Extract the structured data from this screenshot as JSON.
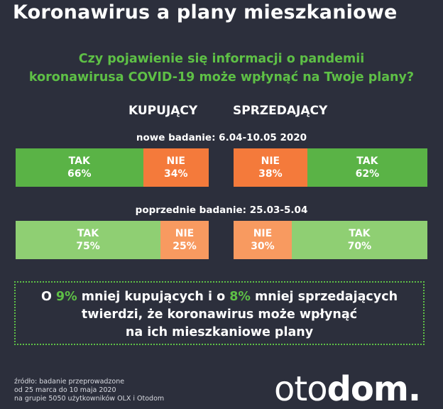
{
  "title": "Koronawirus a plany mieszkaniowe",
  "question_line1": "Czy pojawienie się informacji o pandemii",
  "question_line2": "koronawirusa COVID-19 może wpłynąć na Twoje plany?",
  "columns": {
    "buyers": "KUPUJĄCY",
    "sellers": "SPRZEDAJĄCY"
  },
  "colors": {
    "tak_new": "#5ab346",
    "nie_new": "#f47a3b",
    "tak_old": "#8fcf73",
    "nie_old": "#f89a60",
    "accent_green": "#5ec046",
    "background": "#2c2f3c"
  },
  "chart_data": {
    "type": "bar",
    "categories": [
      "TAK",
      "NIE"
    ],
    "surveys": [
      {
        "label": "nowe badanie: 6.04-10.05 2020",
        "buyers": {
          "TAK": 66,
          "NIE": 34
        },
        "sellers": {
          "TAK": 62,
          "NIE": 38
        }
      },
      {
        "label": "poprzednie badanie: 25.03-5.04",
        "buyers": {
          "TAK": 75,
          "NIE": 25
        },
        "sellers": {
          "TAK": 70,
          "NIE": 30
        }
      }
    ],
    "labels": {
      "new_buyers_tak": "66%",
      "new_buyers_nie": "34%",
      "new_sellers_nie": "38%",
      "new_sellers_tak": "62%",
      "old_buyers_tak": "75%",
      "old_buyers_nie": "25%",
      "old_sellers_nie": "30%",
      "old_sellers_tak": "70%"
    }
  },
  "summary": {
    "p1": "O ",
    "v1": "9%",
    "p2": " mniej kupujących i o ",
    "v2": "8%",
    "p3": " mniej sprzedających",
    "line2": "twierdzi, że koronawirus może wpłynąć",
    "line3": "na ich mieszkaniowe plany"
  },
  "source": {
    "line1": "źródło: badanie przeprowadzone",
    "line2": "od 25 marca do 10 maja 2020",
    "line3": "na grupie 5050 użytkowników OLX i Otodom"
  },
  "logo": {
    "part1": "oto",
    "part2": "dom",
    "dot": "."
  }
}
